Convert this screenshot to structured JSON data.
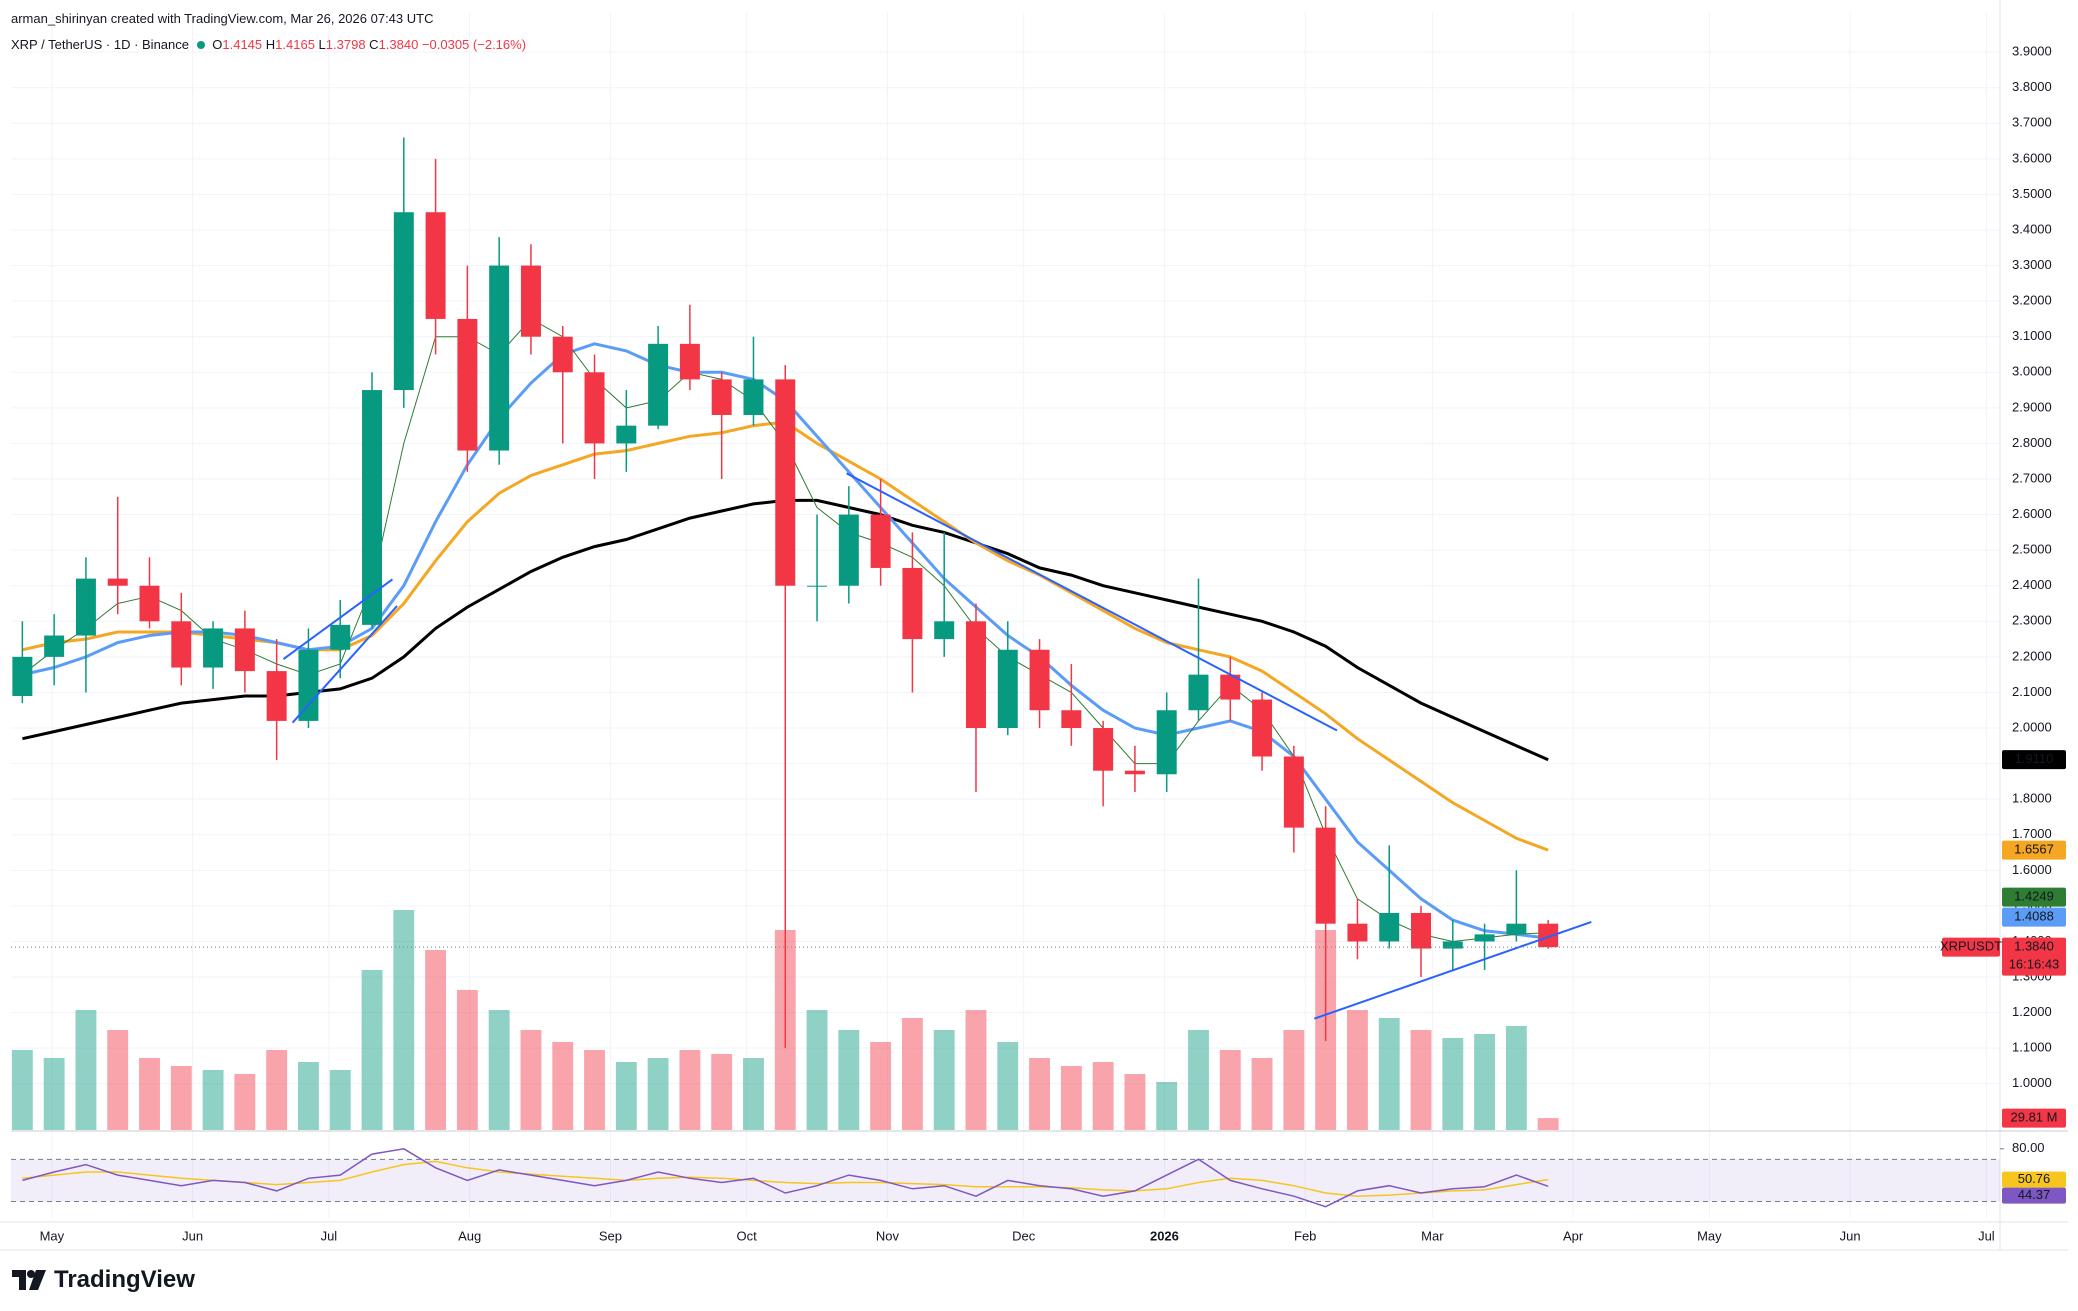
{
  "header": {
    "author_line": "arman_shirinyan created with TradingView.com, Mar 26, 2026 07:43 UTC",
    "symbol": "XRP / TetherUS · 1D · Binance",
    "ohlc": [
      {
        "key": "O",
        "value": "1.4145"
      },
      {
        "key": "H",
        "value": "1.4165"
      },
      {
        "key": "L",
        "value": "1.3798"
      },
      {
        "key": "C",
        "value": "1.3840"
      }
    ],
    "change": "−0.0305 (−2.16%)"
  },
  "chart_data": {
    "type": "candlestick",
    "x": [
      "2025-04-21",
      "2025-04-28",
      "2025-05-05",
      "2025-05-12",
      "2025-05-19",
      "2025-05-26",
      "2025-06-02",
      "2025-06-09",
      "2025-06-16",
      "2025-06-23",
      "2025-06-30",
      "2025-07-07",
      "2025-07-14",
      "2025-07-21",
      "2025-07-28",
      "2025-08-04",
      "2025-08-11",
      "2025-08-18",
      "2025-08-25",
      "2025-09-01",
      "2025-09-08",
      "2025-09-15",
      "2025-09-22",
      "2025-09-29",
      "2025-10-06",
      "2025-10-13",
      "2025-10-20",
      "2025-10-27",
      "2025-11-03",
      "2025-11-10",
      "2025-11-17",
      "2025-11-24",
      "2025-12-01",
      "2025-12-08",
      "2025-12-15",
      "2025-12-22",
      "2025-12-29",
      "2026-01-05",
      "2026-01-12",
      "2026-01-19",
      "2026-01-26",
      "2026-02-02",
      "2026-02-09",
      "2026-02-16",
      "2026-02-23",
      "2026-03-02",
      "2026-03-09",
      "2026-03-16",
      "2026-03-23"
    ],
    "open": [
      2.09,
      2.2,
      2.26,
      2.42,
      2.4,
      2.3,
      2.17,
      2.28,
      2.16,
      2.02,
      2.22,
      2.29,
      2.95,
      3.45,
      3.15,
      2.78,
      3.3,
      3.1,
      3.0,
      2.8,
      2.85,
      3.08,
      2.98,
      2.88,
      2.98,
      2.4,
      2.4,
      2.6,
      2.45,
      2.25,
      2.3,
      2.0,
      2.22,
      2.05,
      2.0,
      1.88,
      1.87,
      2.05,
      2.15,
      2.08,
      1.92,
      1.72,
      1.45,
      1.4,
      1.48,
      1.38,
      1.4,
      1.42,
      1.45
    ],
    "high": [
      2.3,
      2.32,
      2.48,
      2.65,
      2.48,
      2.38,
      2.3,
      2.33,
      2.25,
      2.28,
      2.36,
      3.0,
      3.66,
      3.6,
      3.3,
      3.38,
      3.36,
      3.13,
      3.05,
      2.95,
      3.13,
      3.19,
      3.0,
      3.1,
      3.02,
      2.6,
      2.68,
      2.7,
      2.55,
      2.55,
      2.35,
      2.3,
      2.25,
      2.18,
      2.02,
      1.95,
      2.1,
      2.42,
      2.2,
      2.1,
      1.95,
      1.78,
      1.52,
      1.67,
      1.5,
      1.46,
      1.45,
      1.6,
      1.46
    ],
    "low": [
      2.07,
      2.12,
      2.1,
      2.32,
      2.28,
      2.12,
      2.11,
      2.1,
      1.91,
      2.0,
      2.14,
      2.28,
      2.9,
      3.05,
      2.72,
      2.74,
      3.05,
      2.8,
      2.7,
      2.72,
      2.84,
      2.95,
      2.7,
      2.85,
      1.1,
      2.3,
      2.35,
      2.4,
      2.1,
      2.2,
      1.82,
      1.98,
      2.0,
      1.95,
      1.78,
      1.82,
      1.82,
      2.02,
      2.02,
      1.88,
      1.65,
      1.12,
      1.35,
      1.38,
      1.3,
      1.32,
      1.32,
      1.4,
      1.3798
    ],
    "close": [
      2.2,
      2.26,
      2.42,
      2.4,
      2.3,
      2.17,
      2.28,
      2.16,
      2.02,
      2.22,
      2.29,
      2.95,
      3.45,
      3.15,
      2.78,
      3.3,
      3.1,
      3.0,
      2.8,
      2.85,
      3.08,
      2.98,
      2.88,
      2.98,
      2.4,
      2.4,
      2.6,
      2.45,
      2.25,
      2.3,
      2.0,
      2.22,
      2.05,
      2.0,
      1.88,
      1.87,
      2.05,
      2.15,
      2.08,
      1.92,
      1.72,
      1.45,
      1.4,
      1.48,
      1.38,
      1.4,
      1.42,
      1.45,
      1.384
    ],
    "up_color": "#089981",
    "down_color": "#f23645",
    "xlim": [
      "2025-04-22",
      "2026-07-04"
    ],
    "xticks": [
      {
        "value": "2025-05-01",
        "label": "May"
      },
      {
        "value": "2025-06-01",
        "label": "Jun"
      },
      {
        "value": "2025-07-01",
        "label": "Jul"
      },
      {
        "value": "2025-08-01",
        "label": "Aug"
      },
      {
        "value": "2025-09-01",
        "label": "Sep"
      },
      {
        "value": "2025-10-01",
        "label": "Oct"
      },
      {
        "value": "2025-11-01",
        "label": "Nov"
      },
      {
        "value": "2025-12-01",
        "label": "Dec"
      },
      {
        "value": "2026-01-01",
        "label": "2026"
      },
      {
        "value": "2026-02-01",
        "label": "Feb"
      },
      {
        "value": "2026-03-01",
        "label": "Mar"
      },
      {
        "value": "2026-04-01",
        "label": "Apr"
      },
      {
        "value": "2026-05-01",
        "label": "May"
      },
      {
        "value": "2026-06-01",
        "label": "Jun"
      },
      {
        "value": "2026-07-01",
        "label": "Jul"
      }
    ],
    "ylim": [
      0.87,
      4.01
    ],
    "yticks": [
      {
        "value": 1.0,
        "label": "1.0000"
      },
      {
        "value": 1.1,
        "label": "1.1000"
      },
      {
        "value": 1.2,
        "label": "1.2000"
      },
      {
        "value": 1.3,
        "label": "1.3000"
      },
      {
        "value": 1.4,
        "label": "1.4000"
      },
      {
        "value": 1.5,
        "label": "1.5000"
      },
      {
        "value": 1.6,
        "label": "1.6000"
      },
      {
        "value": 1.7,
        "label": "1.7000"
      },
      {
        "value": 1.8,
        "label": "1.8000"
      },
      {
        "value": 1.9,
        "label": "1.9000"
      },
      {
        "value": 2.0,
        "label": "2.0000"
      },
      {
        "value": 2.1,
        "label": "2.1000"
      },
      {
        "value": 2.2,
        "label": "2.2000"
      },
      {
        "value": 2.3,
        "label": "2.3000"
      },
      {
        "value": 2.4,
        "label": "2.4000"
      },
      {
        "value": 2.5,
        "label": "2.5000"
      },
      {
        "value": 2.6,
        "label": "2.6000"
      },
      {
        "value": 2.7,
        "label": "2.7000"
      },
      {
        "value": 2.8,
        "label": "2.8000"
      },
      {
        "value": 2.9,
        "label": "2.9000"
      },
      {
        "value": 3.0,
        "label": "3.0000"
      },
      {
        "value": 3.1,
        "label": "3.1000"
      },
      {
        "value": 3.2,
        "label": "3.2000"
      },
      {
        "value": 3.3,
        "label": "3.3000"
      },
      {
        "value": 3.4,
        "label": "3.4000"
      },
      {
        "value": 3.5,
        "label": "3.5000"
      },
      {
        "value": 3.6,
        "label": "3.6000"
      },
      {
        "value": 3.7,
        "label": "3.7000"
      },
      {
        "value": 3.8,
        "label": "3.8000"
      },
      {
        "value": 3.9,
        "label": "3.9000"
      }
    ],
    "grid": true,
    "moving_averages": [
      {
        "color": "#000000",
        "width": 3,
        "end_label": "1.9110",
        "values": [
          1.97,
          1.99,
          2.01,
          2.03,
          2.05,
          2.07,
          2.08,
          2.09,
          2.09,
          2.1,
          2.11,
          2.14,
          2.2,
          2.28,
          2.34,
          2.39,
          2.44,
          2.48,
          2.51,
          2.53,
          2.56,
          2.59,
          2.61,
          2.63,
          2.64,
          2.64,
          2.62,
          2.6,
          2.57,
          2.55,
          2.52,
          2.49,
          2.45,
          2.43,
          2.4,
          2.38,
          2.36,
          2.34,
          2.32,
          2.3,
          2.27,
          2.23,
          2.17,
          2.12,
          2.07,
          2.03,
          1.99,
          1.95,
          1.911
        ]
      },
      {
        "color": "#f5a623",
        "width": 3,
        "end_label": "1.6567",
        "values": [
          2.22,
          2.24,
          2.25,
          2.27,
          2.27,
          2.27,
          2.26,
          2.25,
          2.24,
          2.22,
          2.22,
          2.26,
          2.35,
          2.47,
          2.58,
          2.66,
          2.71,
          2.74,
          2.77,
          2.78,
          2.8,
          2.82,
          2.83,
          2.85,
          2.86,
          2.8,
          2.75,
          2.7,
          2.64,
          2.58,
          2.52,
          2.47,
          2.43,
          2.38,
          2.33,
          2.28,
          2.24,
          2.22,
          2.2,
          2.16,
          2.1,
          2.04,
          1.97,
          1.91,
          1.85,
          1.79,
          1.74,
          1.69,
          1.6567
        ]
      },
      {
        "color": "#5b9cf6",
        "width": 3,
        "end_label": "1.4088",
        "values": [
          2.15,
          2.17,
          2.2,
          2.24,
          2.26,
          2.27,
          2.27,
          2.26,
          2.24,
          2.22,
          2.23,
          2.28,
          2.4,
          2.58,
          2.74,
          2.87,
          2.97,
          3.05,
          3.08,
          3.06,
          3.02,
          3.0,
          3.0,
          2.98,
          2.92,
          2.82,
          2.72,
          2.62,
          2.52,
          2.42,
          2.34,
          2.26,
          2.2,
          2.12,
          2.05,
          2.0,
          1.98,
          2.0,
          2.02,
          1.99,
          1.92,
          1.8,
          1.68,
          1.6,
          1.52,
          1.46,
          1.43,
          1.42,
          1.4088
        ]
      },
      {
        "color": "#2e7d32",
        "width": 1,
        "end_label": "1.4249",
        "values": [
          2.15,
          2.22,
          2.28,
          2.35,
          2.37,
          2.33,
          2.25,
          2.22,
          2.18,
          2.15,
          2.18,
          2.4,
          2.8,
          3.1,
          3.1,
          3.05,
          3.15,
          3.1,
          2.98,
          2.9,
          2.92,
          3.0,
          2.98,
          2.92,
          2.8,
          2.62,
          2.55,
          2.52,
          2.48,
          2.4,
          2.28,
          2.2,
          2.15,
          2.1,
          2.0,
          1.9,
          1.9,
          2.02,
          2.12,
          2.05,
          1.92,
          1.7,
          1.52,
          1.46,
          1.42,
          1.4,
          1.41,
          1.42,
          1.4249
        ]
      }
    ],
    "trend_lines": [
      {
        "color": "#2962ff",
        "x": [
          "2025-06-21",
          "2025-07-15"
        ],
        "y": [
          2.194,
          2.418
        ]
      },
      {
        "color": "#2962ff",
        "x": [
          "2025-06-23",
          "2025-07-16"
        ],
        "y": [
          2.015,
          2.343
        ]
      },
      {
        "color": "#2962ff",
        "x": [
          "2025-10-23",
          "2026-02-08"
        ],
        "y": [
          2.716,
          1.993
        ]
      },
      {
        "color": "#2962ff",
        "x": [
          "2026-02-03",
          "2026-04-05"
        ],
        "y": [
          1.183,
          1.455
        ]
      }
    ],
    "last_price": {
      "symbol": "XRPUSDT",
      "label": "1.3840",
      "countdown": "16:16:43"
    },
    "volume": {
      "ylim": [
        0,
        1000
      ],
      "end_label": "29.81 M",
      "values": [
        200,
        180,
        300,
        250,
        180,
        160,
        150,
        140,
        200,
        170,
        150,
        400,
        550,
        450,
        350,
        300,
        250,
        220,
        200,
        170,
        180,
        200,
        190,
        180,
        500,
        300,
        250,
        220,
        280,
        250,
        300,
        220,
        180,
        160,
        170,
        140,
        120,
        250,
        200,
        180,
        250,
        500,
        300,
        280,
        250,
        230,
        240,
        260,
        29.81
      ]
    },
    "rsi": {
      "ylim": [
        20,
        95
      ],
      "yticks": [
        {
          "value": 80,
          "label": "80.00"
        }
      ],
      "levels": [
        30,
        70
      ],
      "color": "#7e57c2",
      "ma_color": "#f7c51e",
      "values": [
        50,
        58,
        65,
        55,
        50,
        45,
        50,
        48,
        40,
        52,
        55,
        75,
        80,
        62,
        50,
        60,
        55,
        50,
        45,
        50,
        58,
        52,
        48,
        52,
        38,
        45,
        55,
        50,
        42,
        45,
        35,
        50,
        45,
        42,
        35,
        40,
        55,
        70,
        50,
        42,
        35,
        25,
        40,
        45,
        38,
        42,
        44,
        55,
        44.37
      ],
      "ma_values": [
        52,
        55,
        58,
        58,
        55,
        52,
        50,
        48,
        46,
        48,
        50,
        58,
        65,
        68,
        62,
        58,
        56,
        54,
        52,
        50,
        52,
        53,
        52,
        50,
        48,
        47,
        48,
        48,
        47,
        46,
        44,
        44,
        44,
        43,
        41,
        40,
        42,
        48,
        52,
        50,
        45,
        38,
        35,
        36,
        38,
        40,
        41,
        46,
        50.76
      ]
    }
  },
  "footer": {
    "brand": "TradingView"
  }
}
